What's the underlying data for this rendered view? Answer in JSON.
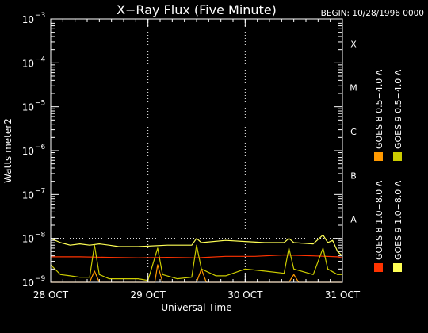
{
  "chart_data": {
    "type": "line",
    "title": "X−Ray Flux (Five Minute)",
    "begin_label": "BEGIN: 10/28/1996 0000",
    "xlabel": "Universal Time",
    "ylabel": "Watts meter2",
    "y_scale": "log",
    "ylim": [
      1e-09,
      0.001
    ],
    "y_ticks": [
      {
        "exp": "−3",
        "value": 0.001
      },
      {
        "exp": "−4",
        "value": 0.0001
      },
      {
        "exp": "−5",
        "value": 1e-05
      },
      {
        "exp": "−6",
        "value": 1e-06
      },
      {
        "exp": "−7",
        "value": 1e-07
      },
      {
        "exp": "−8",
        "value": 1e-08
      },
      {
        "exp": "−9",
        "value": 1e-09
      }
    ],
    "tick_base": "10",
    "x_unit": "days from 28 OCT 0000 UT",
    "xlim": [
      0,
      3
    ],
    "x_ticks": [
      {
        "label": "28 OCT",
        "value": 0
      },
      {
        "label": "29 OCT",
        "value": 1
      },
      {
        "label": "30 OCT",
        "value": 2
      },
      {
        "label": "31 OCT",
        "value": 3
      }
    ],
    "grid": "dotted vertical day lines, dotted horizontal line at 1e-8",
    "flare_classes": [
      {
        "label": "X",
        "value": 0.0001
      },
      {
        "label": "M",
        "value": 1e-05
      },
      {
        "label": "C",
        "value": 1e-06
      },
      {
        "label": "B",
        "value": 1e-07
      },
      {
        "label": "A",
        "value": 1e-08
      }
    ],
    "legend_placement": "right, vertical",
    "series": [
      {
        "name": "GOES 8 1.0−8.0 A",
        "color": "#ff3300",
        "points": [
          [
            0,
            3.8e-09
          ],
          [
            0.3,
            3.8e-09
          ],
          [
            0.6,
            3.7e-09
          ],
          [
            0.9,
            3.6e-09
          ],
          [
            1.2,
            3.7e-09
          ],
          [
            1.5,
            3.6e-09
          ],
          [
            1.8,
            3.9e-09
          ],
          [
            2.1,
            3.9e-09
          ],
          [
            2.4,
            4.2e-09
          ],
          [
            2.7,
            4e-09
          ],
          [
            2.95,
            3.8e-09
          ],
          [
            3.0,
            3.6e-09
          ]
        ]
      },
      {
        "name": "GOES 8 0.5−4.0 A",
        "color": "#ff9900",
        "points": [
          [
            0,
            1e-09
          ],
          [
            0.4,
            1e-09
          ],
          [
            0.45,
            1.8e-09
          ],
          [
            0.5,
            1e-09
          ],
          [
            1.07,
            1e-09
          ],
          [
            1.1,
            2.5e-09
          ],
          [
            1.15,
            1e-09
          ],
          [
            1.5,
            1e-09
          ],
          [
            1.55,
            2e-09
          ],
          [
            1.6,
            1e-09
          ],
          [
            2.45,
            1e-09
          ],
          [
            2.5,
            1.5e-09
          ],
          [
            2.55,
            1e-09
          ],
          [
            3.0,
            1e-09
          ]
        ]
      },
      {
        "name": "GOES 9 1.0−8.0 A",
        "color": "#ffff55",
        "points": [
          [
            0,
            1e-08
          ],
          [
            0.1,
            8e-09
          ],
          [
            0.2,
            7e-09
          ],
          [
            0.3,
            7.5e-09
          ],
          [
            0.4,
            7e-09
          ],
          [
            0.5,
            7.5e-09
          ],
          [
            0.6,
            7e-09
          ],
          [
            0.7,
            6.5e-09
          ],
          [
            0.9,
            6.5e-09
          ],
          [
            1.2,
            7e-09
          ],
          [
            1.45,
            7e-09
          ],
          [
            1.5,
            1e-08
          ],
          [
            1.55,
            8e-09
          ],
          [
            1.8,
            9e-09
          ],
          [
            2.0,
            8.5e-09
          ],
          [
            2.2,
            8e-09
          ],
          [
            2.4,
            8e-09
          ],
          [
            2.45,
            1e-08
          ],
          [
            2.5,
            8e-09
          ],
          [
            2.7,
            7.5e-09
          ],
          [
            2.8,
            1.2e-08
          ],
          [
            2.85,
            8e-09
          ],
          [
            2.9,
            9e-09
          ],
          [
            2.95,
            5e-09
          ],
          [
            3.0,
            4e-09
          ]
        ]
      },
      {
        "name": "GOES 9 0.5−4.0 A",
        "color": "#cccc00",
        "points": [
          [
            0,
            2.5e-09
          ],
          [
            0.1,
            1.5e-09
          ],
          [
            0.2,
            1.4e-09
          ],
          [
            0.3,
            1.3e-09
          ],
          [
            0.4,
            1.3e-09
          ],
          [
            0.45,
            7e-09
          ],
          [
            0.5,
            1.5e-09
          ],
          [
            0.6,
            1.2e-09
          ],
          [
            0.7,
            1.2e-09
          ],
          [
            0.9,
            1.2e-09
          ],
          [
            1.0,
            1.1e-09
          ],
          [
            1.1,
            6e-09
          ],
          [
            1.15,
            1.5e-09
          ],
          [
            1.3,
            1.2e-09
          ],
          [
            1.45,
            1.3e-09
          ],
          [
            1.5,
            7e-09
          ],
          [
            1.55,
            2e-09
          ],
          [
            1.7,
            1.4e-09
          ],
          [
            1.8,
            1.4e-09
          ],
          [
            2.0,
            2e-09
          ],
          [
            2.2,
            1.8e-09
          ],
          [
            2.4,
            1.6e-09
          ],
          [
            2.45,
            6e-09
          ],
          [
            2.5,
            2e-09
          ],
          [
            2.7,
            1.5e-09
          ],
          [
            2.8,
            6e-09
          ],
          [
            2.85,
            2e-09
          ],
          [
            2.95,
            1.5e-09
          ],
          [
            3.0,
            1.5e-09
          ]
        ]
      }
    ]
  }
}
